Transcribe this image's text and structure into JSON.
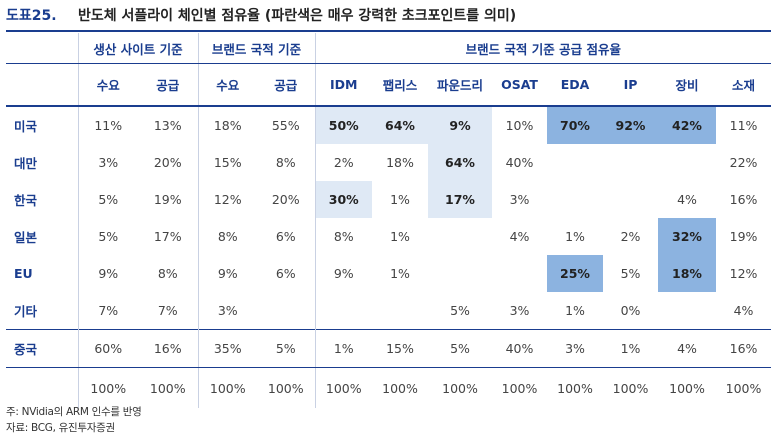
{
  "title": {
    "fig_no": "도표25.",
    "text": "반도체 서플라이 체인별 점유율 (파란색은 매우 강력한 초크포인트를 의미)"
  },
  "header_groups": [
    "생산 사이트 기준",
    "브랜드 국적 기준",
    "브랜드 국적 기준 공급 점유율"
  ],
  "columns": [
    "수요",
    "공급",
    "수요",
    "공급",
    "IDM",
    "팹리스",
    "파운드리",
    "OSAT",
    "EDA",
    "IP",
    "장비",
    "소재"
  ],
  "rows": [
    {
      "label": "미국",
      "cells": [
        "11%",
        "13%",
        "18%",
        "55%",
        "50%",
        "64%",
        "9%",
        "10%",
        "70%",
        "92%",
        "42%",
        "11%"
      ]
    },
    {
      "label": "대만",
      "cells": [
        "3%",
        "20%",
        "15%",
        "8%",
        "2%",
        "18%",
        "64%",
        "40%",
        "",
        "",
        "",
        "22%"
      ]
    },
    {
      "label": "한국",
      "cells": [
        "5%",
        "19%",
        "12%",
        "20%",
        "30%",
        "1%",
        "17%",
        "3%",
        "",
        "",
        "4%",
        "16%"
      ]
    },
    {
      "label": "일본",
      "cells": [
        "5%",
        "17%",
        "8%",
        "6%",
        "8%",
        "1%",
        "",
        "4%",
        "1%",
        "2%",
        "32%",
        "19%"
      ]
    },
    {
      "label": "EU",
      "cells": [
        "9%",
        "8%",
        "9%",
        "6%",
        "9%",
        "1%",
        "",
        "",
        "25%",
        "5%",
        "18%",
        "12%"
      ]
    },
    {
      "label": "기타",
      "cells": [
        "7%",
        "7%",
        "3%",
        "",
        "",
        "",
        "5%",
        "3%",
        "1%",
        "0%",
        "",
        "4%"
      ]
    },
    {
      "label": "중국",
      "cells": [
        "60%",
        "16%",
        "35%",
        "5%",
        "1%",
        "15%",
        "5%",
        "40%",
        "3%",
        "1%",
        "4%",
        "16%"
      ]
    },
    {
      "label": "",
      "cells": [
        "100%",
        "100%",
        "100%",
        "100%",
        "100%",
        "100%",
        "100%",
        "100%",
        "100%",
        "100%",
        "100%",
        "100%"
      ]
    }
  ],
  "highlights": {
    "light": [
      [
        0,
        4
      ],
      [
        0,
        5
      ],
      [
        0,
        6
      ],
      [
        1,
        6
      ],
      [
        2,
        4
      ],
      [
        2,
        6
      ]
    ],
    "strong": [
      [
        0,
        8
      ],
      [
        0,
        9
      ],
      [
        0,
        10
      ],
      [
        3,
        10
      ],
      [
        4,
        8
      ],
      [
        4,
        10
      ]
    ]
  },
  "highlight_colors": {
    "light": "#dfe9f5",
    "strong": "#8cb3e0",
    "accent": "#1a3d8f"
  },
  "notes": [
    "주: NVidia의 ARM 인수를 반영",
    "자료: BCG, 유진투자증권"
  ]
}
